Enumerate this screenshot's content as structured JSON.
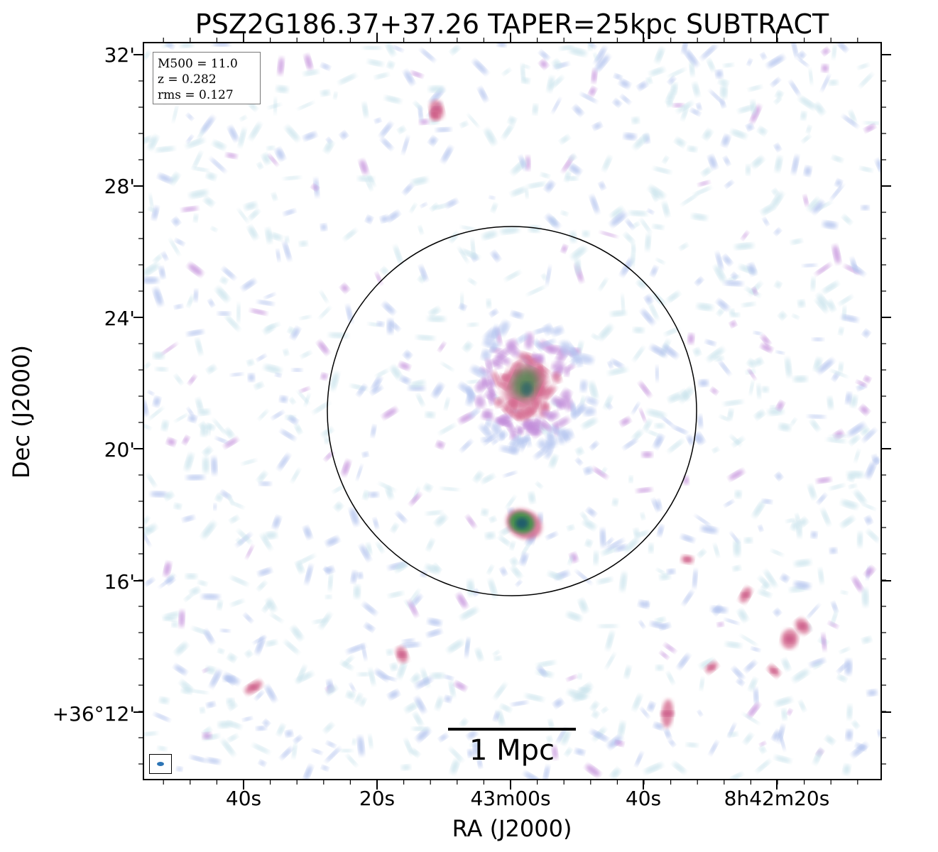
{
  "title": "PSZ2G186.37+37.26 TAPER=25kpc SUBTRACT",
  "axes": {
    "xlabel": "RA (J2000)",
    "ylabel": "Dec (J2000)",
    "yticks": [
      "32'",
      "28'",
      "24'",
      "20'",
      "16'",
      "+36°12'"
    ],
    "xticks": [
      "40s",
      "20s",
      "43m00s",
      "40s",
      "8h42m20s"
    ]
  },
  "info": {
    "m500": "M500 = 11.0",
    "z": "z = 0.282",
    "rms": "rms = 0.127"
  },
  "scale_bar": {
    "label": "1 Mpc"
  },
  "colors": {
    "faint": "#c9e3ec",
    "low": "#b4c4ef",
    "mid": "#c08ad9",
    "high": "#d46a8e",
    "peak_green": "#3f8f4a",
    "core": "#1d5b6e",
    "frame": "#000000",
    "beam": "#2c74b5"
  },
  "icons": {
    "beam": "beam-ellipse-icon",
    "aperture": "r500-circle-icon"
  }
}
